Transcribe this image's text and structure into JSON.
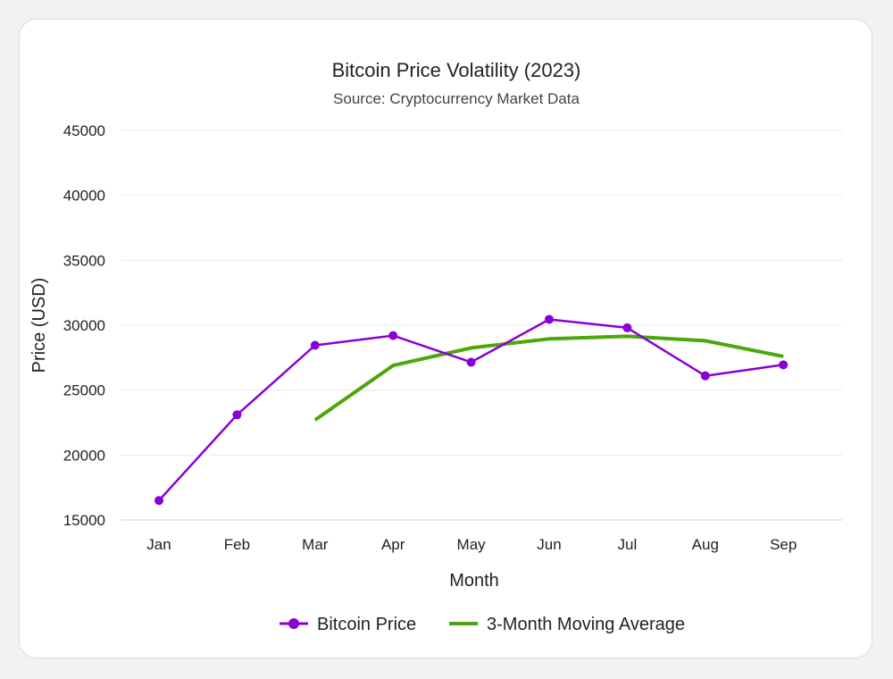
{
  "chart_data": {
    "type": "line",
    "title": "Bitcoin Price Volatility (2023)",
    "subtitle": "Source: Cryptocurrency Market Data",
    "xlabel": "Month",
    "ylabel": "Price (USD)",
    "categories": [
      "Jan",
      "Feb",
      "Mar",
      "Apr",
      "May",
      "Jun",
      "Jul",
      "Aug",
      "Sep"
    ],
    "ylim": [
      15000,
      45000
    ],
    "yticks": [
      "15000",
      "20000",
      "25000",
      "30000",
      "35000",
      "40000",
      "45000"
    ],
    "grid": true,
    "legend_position": "bottom",
    "series": [
      {
        "name": "Bitcoin Price",
        "color": "#8a00d4",
        "marker": "circle",
        "values": [
          16500,
          23100,
          28450,
          29200,
          27150,
          30450,
          29800,
          26100,
          26950
        ]
      },
      {
        "name": "3-Month Moving Average",
        "color": "#4da60a",
        "marker": "none",
        "values": [
          null,
          null,
          22700,
          26900,
          28250,
          28950,
          29150,
          28800,
          27600
        ]
      }
    ]
  }
}
